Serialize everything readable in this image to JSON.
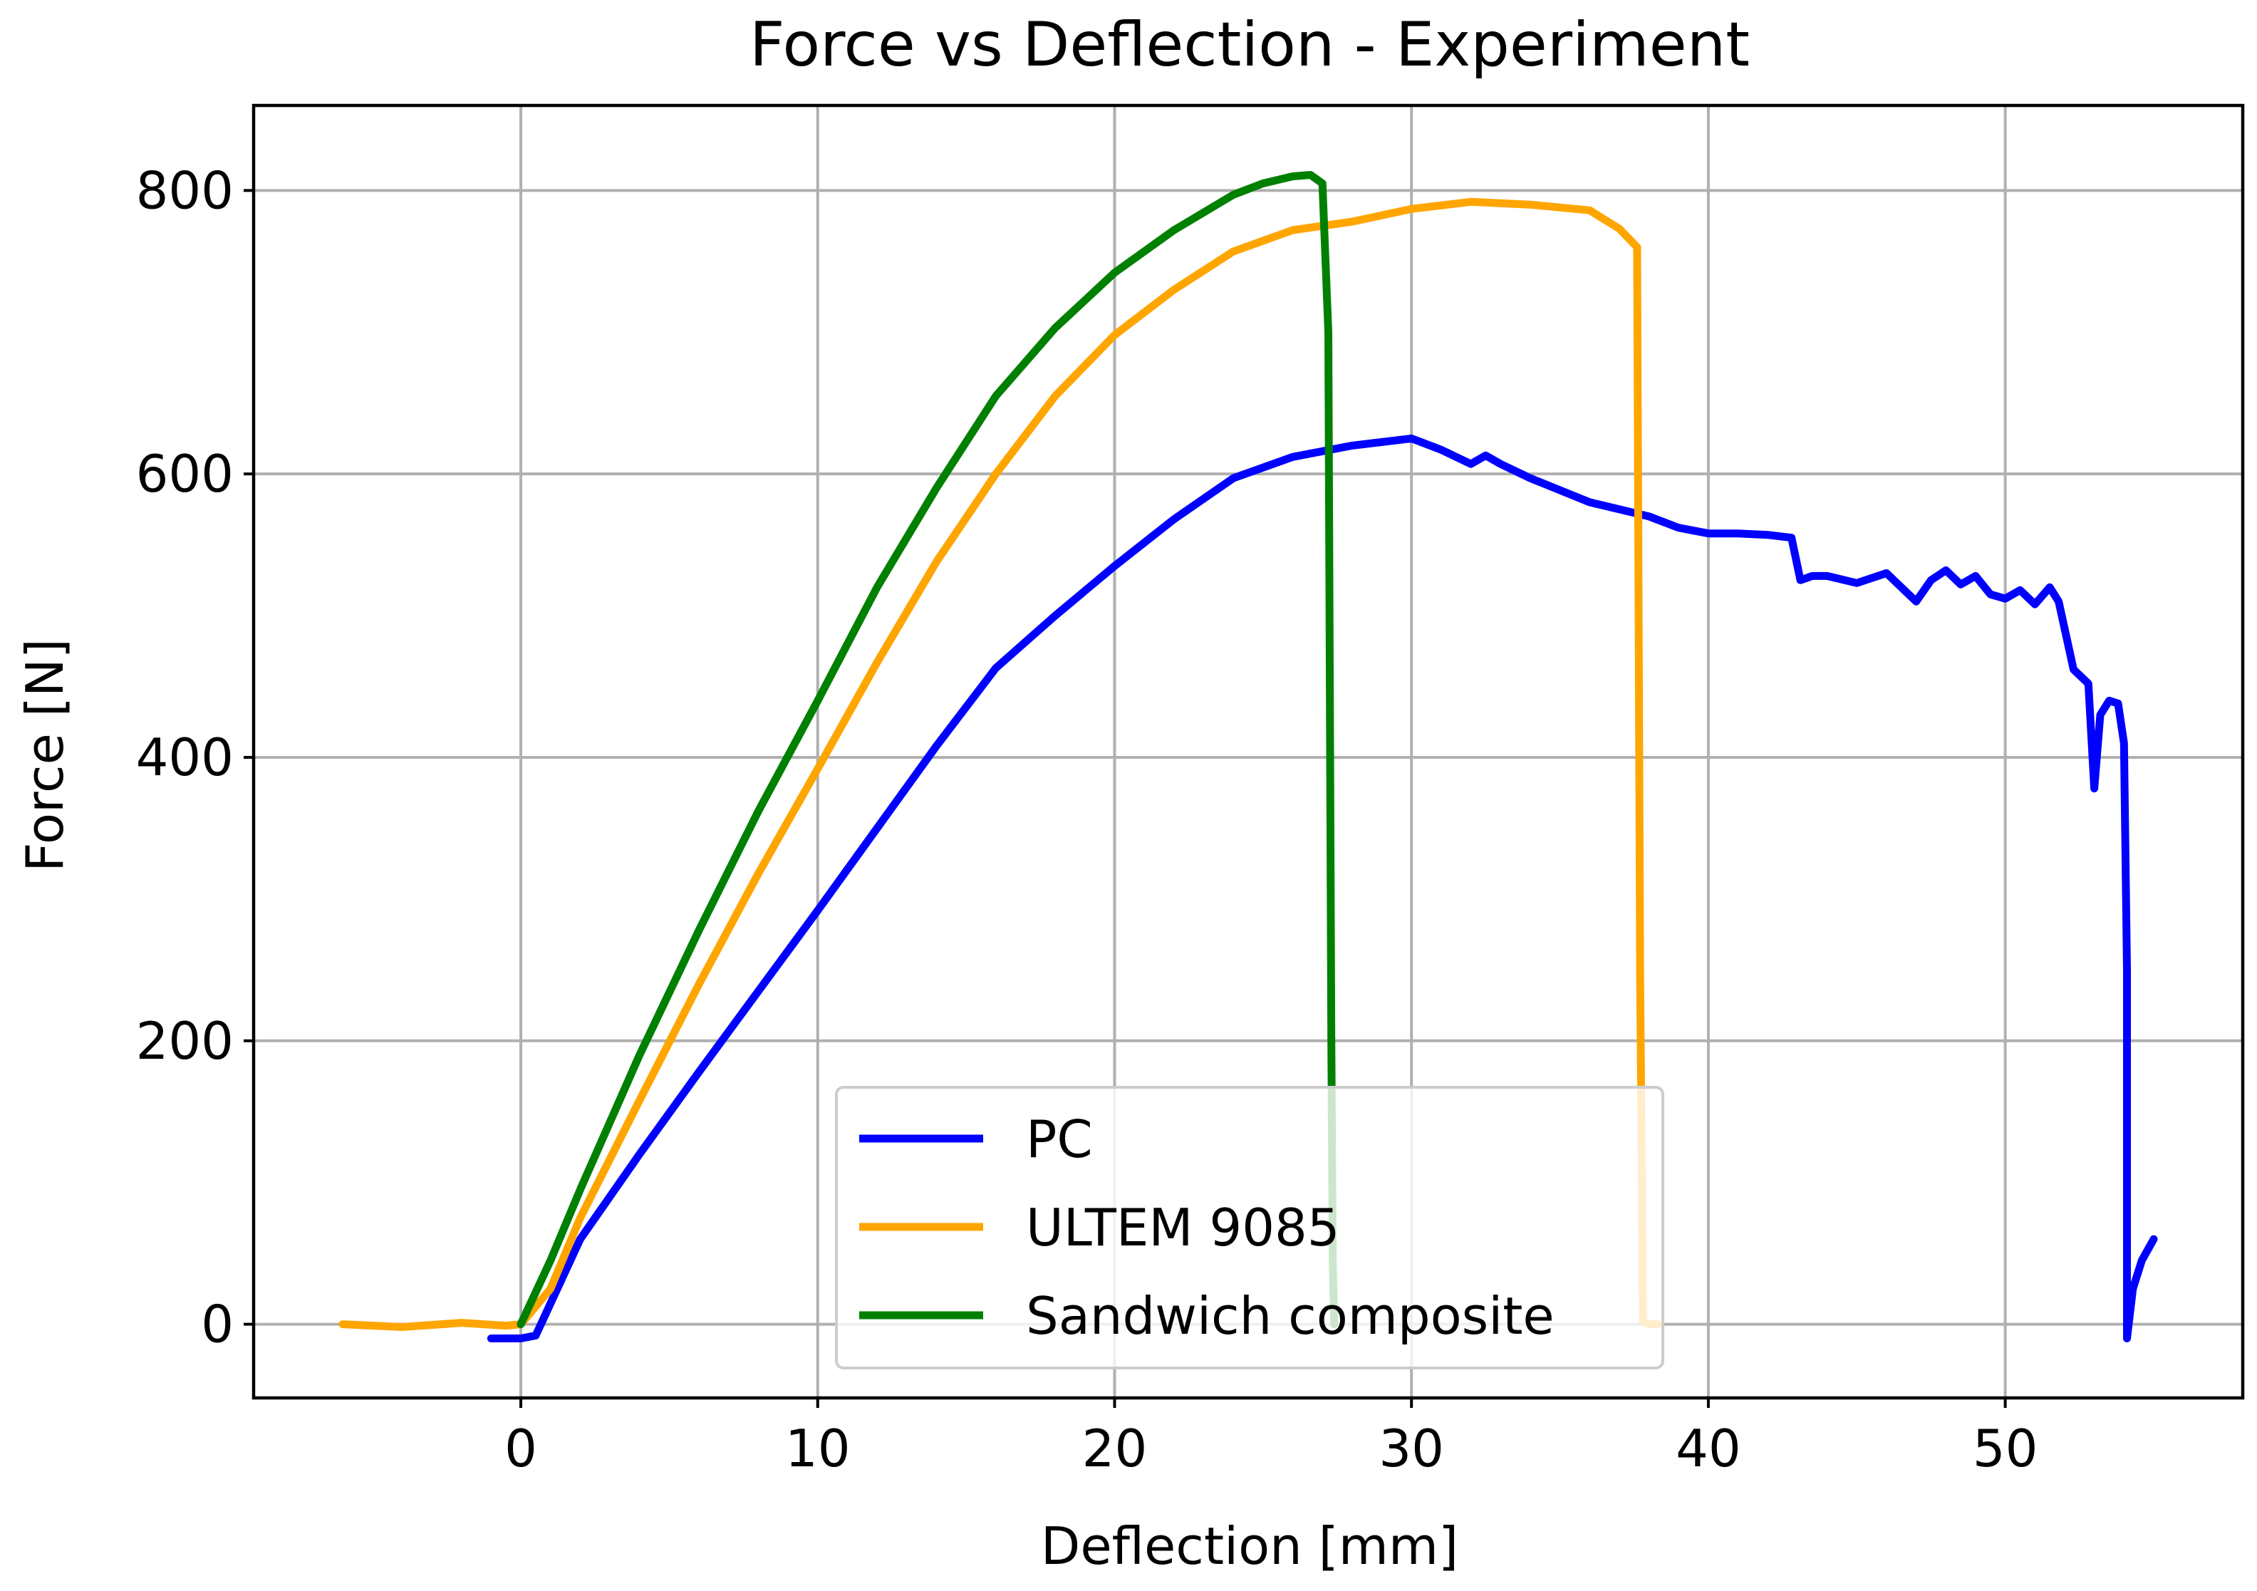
{
  "chart_data": {
    "type": "line",
    "title": "Force vs Deflection - Experiment",
    "xlabel": "Deflection [mm]",
    "ylabel": "Force [N]",
    "xlim": [
      -9,
      58
    ],
    "ylim": [
      -52,
      860
    ],
    "xticks": [
      0,
      10,
      20,
      30,
      40,
      50
    ],
    "yticks": [
      0,
      200,
      400,
      600,
      800
    ],
    "grid": true,
    "legend_position": "lower center",
    "series": [
      {
        "name": "PC",
        "color": "#0000ff",
        "x": [
          -1,
          0,
          0.5,
          2,
          4,
          6,
          8,
          10,
          12,
          14,
          16,
          18,
          20,
          22,
          24,
          26,
          28,
          30,
          31,
          32,
          32.5,
          33,
          34,
          36,
          38,
          39,
          40,
          41,
          42,
          42.8,
          43.1,
          43.5,
          44,
          45,
          46,
          46.5,
          47,
          47.5,
          48,
          48.5,
          49,
          49.5,
          50,
          50.5,
          51,
          51.5,
          51.8,
          52.3,
          52.8,
          53.0,
          53.2,
          53.5,
          53.8,
          54.0,
          54.1,
          54.1,
          54.3,
          54.6,
          55.0
        ],
        "y": [
          -10,
          -10,
          -8,
          60,
          120,
          178,
          235,
          292,
          350,
          408,
          463,
          500,
          535,
          568,
          597,
          612,
          620,
          625,
          617,
          607,
          613,
          607,
          597,
          580,
          570,
          562,
          558,
          558,
          557,
          555,
          525,
          528,
          528,
          523,
          530,
          520,
          510,
          525,
          532,
          522,
          528,
          515,
          512,
          518,
          508,
          520,
          510,
          462,
          452,
          378,
          430,
          440,
          438,
          410,
          250,
          -10,
          25,
          45,
          60
        ]
      },
      {
        "name": "ULTEM 9085",
        "color": "#ffa500",
        "x": [
          -6,
          -4,
          -2,
          -0.5,
          0,
          1,
          2,
          4,
          6,
          8,
          10,
          12,
          14,
          16,
          18,
          20,
          22,
          24,
          26,
          28,
          30,
          32,
          34,
          36,
          37,
          37.6,
          37.7,
          37.8,
          38.0,
          38.3
        ],
        "y": [
          0,
          -2,
          1,
          -1,
          0,
          25,
          75,
          158,
          240,
          318,
          392,
          467,
          538,
          600,
          655,
          698,
          730,
          757,
          772,
          778,
          787,
          792,
          790,
          786,
          773,
          760,
          250,
          2,
          0,
          0
        ]
      },
      {
        "name": "Sandwich composite",
        "color": "#008000",
        "x": [
          0,
          1,
          2,
          4,
          6,
          8,
          10,
          12,
          14,
          16,
          18,
          20,
          22,
          24,
          25,
          26,
          26.6,
          27.0,
          27.2,
          27.3,
          27.35,
          27.4
        ],
        "y": [
          0,
          45,
          95,
          190,
          278,
          362,
          440,
          520,
          590,
          655,
          703,
          742,
          772,
          797,
          805,
          810,
          811,
          805,
          700,
          200,
          40,
          0
        ]
      }
    ]
  }
}
